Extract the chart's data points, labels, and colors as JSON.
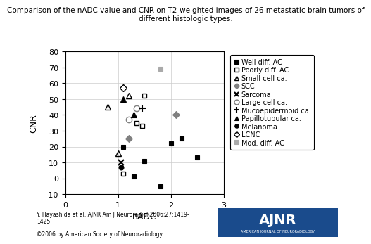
{
  "title": "Comparison of the nADC value and CNR on T2-weighted images of 26 metastatic brain tumors of\ndifferent histologic types.",
  "xlabel": "nADC",
  "ylabel": "CNR",
  "xlim": [
    0,
    3
  ],
  "ylim": [
    -10,
    80
  ],
  "xticks": [
    0,
    1,
    2,
    3
  ],
  "yticks": [
    -10,
    0,
    10,
    20,
    30,
    40,
    50,
    60,
    70,
    80
  ],
  "series": [
    {
      "label": "Well diff. AC",
      "marker": "s",
      "color": "black",
      "fillstyle": "full",
      "markersize": 5,
      "points": [
        [
          1.1,
          20
        ],
        [
          1.3,
          1
        ],
        [
          1.5,
          11
        ],
        [
          1.8,
          -5
        ],
        [
          2.0,
          22
        ],
        [
          2.2,
          25
        ],
        [
          2.5,
          13
        ]
      ]
    },
    {
      "label": "Poorly diff. AC",
      "marker": "s",
      "color": "black",
      "fillstyle": "none",
      "markersize": 5,
      "points": [
        [
          1.1,
          3
        ],
        [
          1.35,
          35
        ],
        [
          1.45,
          33
        ],
        [
          1.5,
          52
        ]
      ]
    },
    {
      "label": "Small cell ca.",
      "marker": "^",
      "color": "black",
      "fillstyle": "none",
      "markersize": 6,
      "points": [
        [
          0.8,
          45
        ],
        [
          1.0,
          16
        ],
        [
          1.2,
          52
        ]
      ]
    },
    {
      "label": "SCC",
      "marker": "D",
      "color": "gray",
      "fillstyle": "full",
      "markersize": 5,
      "points": [
        [
          1.2,
          25
        ],
        [
          2.1,
          40
        ]
      ]
    },
    {
      "label": "Sarcoma",
      "marker": "x",
      "color": "black",
      "fillstyle": "full",
      "markersize": 6,
      "points": [
        [
          1.05,
          10
        ]
      ]
    },
    {
      "label": "Large cell ca.",
      "marker": "o",
      "color": "gray",
      "fillstyle": "none",
      "markersize": 6,
      "points": [
        [
          1.2,
          37
        ],
        [
          1.35,
          44
        ]
      ]
    },
    {
      "label": "Mucoepidermoid ca.",
      "marker": "+",
      "color": "black",
      "fillstyle": "full",
      "markersize": 7,
      "points": [
        [
          1.45,
          44
        ]
      ]
    },
    {
      "label": "Papillotubular ca.",
      "marker": "^",
      "color": "black",
      "fillstyle": "full",
      "markersize": 6,
      "points": [
        [
          1.1,
          50
        ],
        [
          1.3,
          40
        ]
      ]
    },
    {
      "label": "Melanoma",
      "marker": "o",
      "color": "black",
      "fillstyle": "full",
      "markersize": 5,
      "points": [
        [
          1.05,
          7
        ]
      ]
    },
    {
      "label": "LCNC",
      "marker": "D",
      "color": "black",
      "fillstyle": "none",
      "markersize": 5,
      "points": [
        [
          1.1,
          57
        ]
      ]
    },
    {
      "label": "Mod. diff. AC",
      "marker": "s",
      "color": "#aaaaaa",
      "fillstyle": "full",
      "markersize": 5,
      "points": [
        [
          1.8,
          69
        ]
      ]
    }
  ],
  "footnote": "Y. Hayashida et al. AJNR Am J Neuroradiol 2006;27:1419-\n1425",
  "copyright": "©2006 by American Society of Neuroradiology",
  "background_color": "#ffffff",
  "title_fontsize": 7.5,
  "axis_fontsize": 9,
  "tick_fontsize": 8,
  "legend_fontsize": 7
}
